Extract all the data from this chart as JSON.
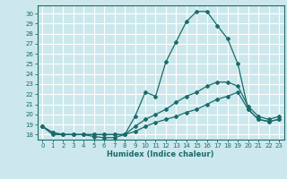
{
  "title": "",
  "xlabel": "Humidex (Indice chaleur)",
  "bg_color": "#cce8ec",
  "grid_color": "#ffffff",
  "line_color": "#1a6b6b",
  "xlim": [
    -0.5,
    23.5
  ],
  "ylim": [
    17.5,
    30.8
  ],
  "yticks": [
    18,
    19,
    20,
    21,
    22,
    23,
    24,
    25,
    26,
    27,
    28,
    29,
    30
  ],
  "xticks": [
    0,
    1,
    2,
    3,
    4,
    5,
    6,
    7,
    8,
    9,
    10,
    11,
    12,
    13,
    14,
    15,
    16,
    17,
    18,
    19,
    20,
    21,
    22,
    23
  ],
  "series1_x": [
    0,
    1,
    2,
    3,
    4,
    5,
    6,
    7,
    8,
    9,
    10,
    11,
    12,
    13,
    14,
    15,
    16,
    17,
    18,
    19,
    20,
    21,
    22,
    23
  ],
  "series1_y": [
    18.8,
    18.0,
    18.0,
    18.0,
    18.0,
    17.8,
    17.7,
    17.7,
    18.0,
    19.8,
    22.2,
    21.8,
    25.2,
    27.2,
    29.2,
    30.2,
    30.2,
    28.8,
    27.5,
    25.0,
    20.5,
    19.5,
    19.3,
    19.5
  ],
  "series2_x": [
    0,
    1,
    2,
    3,
    4,
    5,
    6,
    7,
    8,
    9,
    10,
    11,
    12,
    13,
    14,
    15,
    16,
    17,
    18,
    19,
    20,
    21,
    22,
    23
  ],
  "series2_y": [
    18.8,
    18.2,
    18.0,
    18.0,
    18.0,
    18.0,
    18.0,
    18.0,
    18.0,
    18.8,
    19.5,
    20.0,
    20.5,
    21.2,
    21.8,
    22.2,
    22.8,
    23.2,
    23.2,
    22.8,
    20.8,
    19.8,
    19.5,
    19.8
  ],
  "series3_x": [
    0,
    1,
    2,
    3,
    4,
    5,
    6,
    7,
    8,
    9,
    10,
    11,
    12,
    13,
    14,
    15,
    16,
    17,
    18,
    19,
    20,
    21,
    22,
    23
  ],
  "series3_y": [
    18.8,
    18.2,
    18.0,
    18.0,
    18.0,
    18.0,
    18.0,
    18.0,
    18.0,
    18.3,
    18.8,
    19.2,
    19.5,
    19.8,
    20.2,
    20.5,
    21.0,
    21.5,
    21.8,
    22.2,
    20.5,
    19.5,
    19.3,
    19.5
  ]
}
